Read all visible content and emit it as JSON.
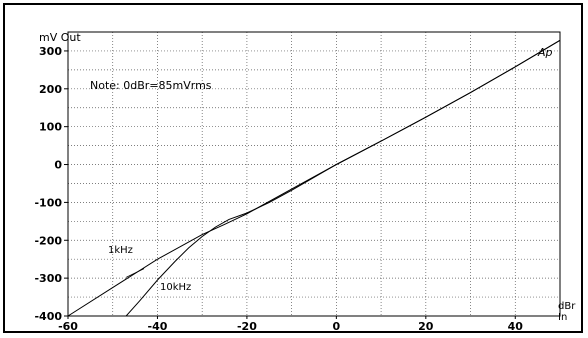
{
  "chart_data": {
    "type": "line",
    "ylabel": "mV  Out",
    "xlabel": "dBr",
    "xlabel_sub": "In",
    "watermark": "Ap",
    "note": "Note:  0dBr=85mVrms",
    "xlim": [
      -60,
      50
    ],
    "ylim": [
      -400,
      350
    ],
    "x_ticks": [
      -60,
      -40,
      -20,
      0,
      20,
      40
    ],
    "y_ticks": [
      300,
      200,
      100,
      0,
      -100,
      -200,
      -300,
      -400
    ],
    "x_tick_labels": [
      "-60",
      "-40",
      "-20",
      "0",
      "20",
      "40"
    ],
    "y_tick_labels": [
      "300",
      "200",
      "100",
      "0",
      "-100",
      "-200",
      "-300",
      "-400"
    ],
    "grid": true,
    "series": [
      {
        "name": "1kHz",
        "x": [
          -60,
          -50,
          -40,
          -30,
          -25,
          -20,
          -10,
          0,
          10,
          20,
          30,
          40,
          50
        ],
        "y": [
          -400,
          -325,
          -250,
          -185,
          -158,
          -130,
          -65,
          0,
          62,
          125,
          190,
          258,
          328
        ]
      },
      {
        "name": "10kHz",
        "x": [
          -47,
          -44,
          -40,
          -36,
          -33,
          -30,
          -27,
          -24,
          -20,
          -15,
          -10,
          0,
          10,
          20,
          30,
          40,
          50
        ],
        "y": [
          -400,
          -360,
          -305,
          -255,
          -220,
          -190,
          -165,
          -145,
          -128,
          -100,
          -68,
          0,
          62,
          125,
          190,
          258,
          328
        ]
      }
    ],
    "annotations": [
      {
        "text": "1kHz",
        "series": "1kHz"
      },
      {
        "text": "10kHz",
        "series": "10kHz"
      }
    ]
  }
}
